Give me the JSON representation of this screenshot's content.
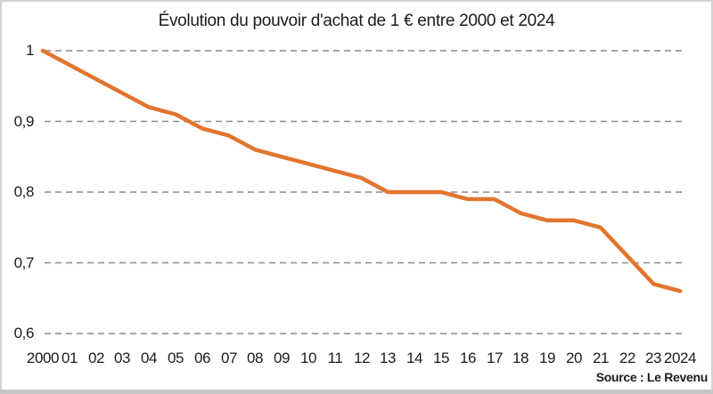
{
  "title": "Évolution du pouvoir d'achat de 1 € entre 2000 et 2024",
  "source": "Source : Le Revenu",
  "colors": {
    "line": "#E2752E",
    "gridline": "#8A8A8A",
    "text": "#1B1B1B",
    "frame_border": "#D2D2D2",
    "bottom_bar": "#C6C6C6",
    "background": "#FFFFFF"
  },
  "chart_data": {
    "type": "line",
    "title": "Évolution du pouvoir d'achat de 1 € entre 2000 et 2024",
    "x": [
      2000,
      2001,
      2002,
      2003,
      2004,
      2005,
      2006,
      2007,
      2008,
      2009,
      2010,
      2011,
      2012,
      2013,
      2014,
      2015,
      2016,
      2017,
      2018,
      2019,
      2020,
      2021,
      2022,
      2023,
      2024
    ],
    "x_tick_labels": [
      "2000",
      "01",
      "02",
      "03",
      "04",
      "05",
      "06",
      "07",
      "08",
      "09",
      "10",
      "11",
      "12",
      "13",
      "14",
      "15",
      "16",
      "17",
      "18",
      "19",
      "20",
      "21",
      "22",
      "23",
      "2024"
    ],
    "series": [
      {
        "name": "Pouvoir d'achat de 1 €",
        "values": [
          1.0,
          0.98,
          0.96,
          0.94,
          0.92,
          0.91,
          0.89,
          0.88,
          0.86,
          0.85,
          0.84,
          0.83,
          0.82,
          0.8,
          0.8,
          0.8,
          0.79,
          0.79,
          0.77,
          0.76,
          0.76,
          0.75,
          0.71,
          0.67,
          0.66
        ]
      }
    ],
    "y_ticks": [
      1,
      0.9,
      0.8,
      0.7,
      0.6
    ],
    "y_tick_labels": [
      "1",
      "0,9",
      "0,8",
      "0,7",
      "0,6"
    ],
    "ylim": [
      0.6,
      1.0
    ],
    "grid": "horizontal-dashed",
    "legend": "none",
    "line_color": "#E2752E"
  }
}
